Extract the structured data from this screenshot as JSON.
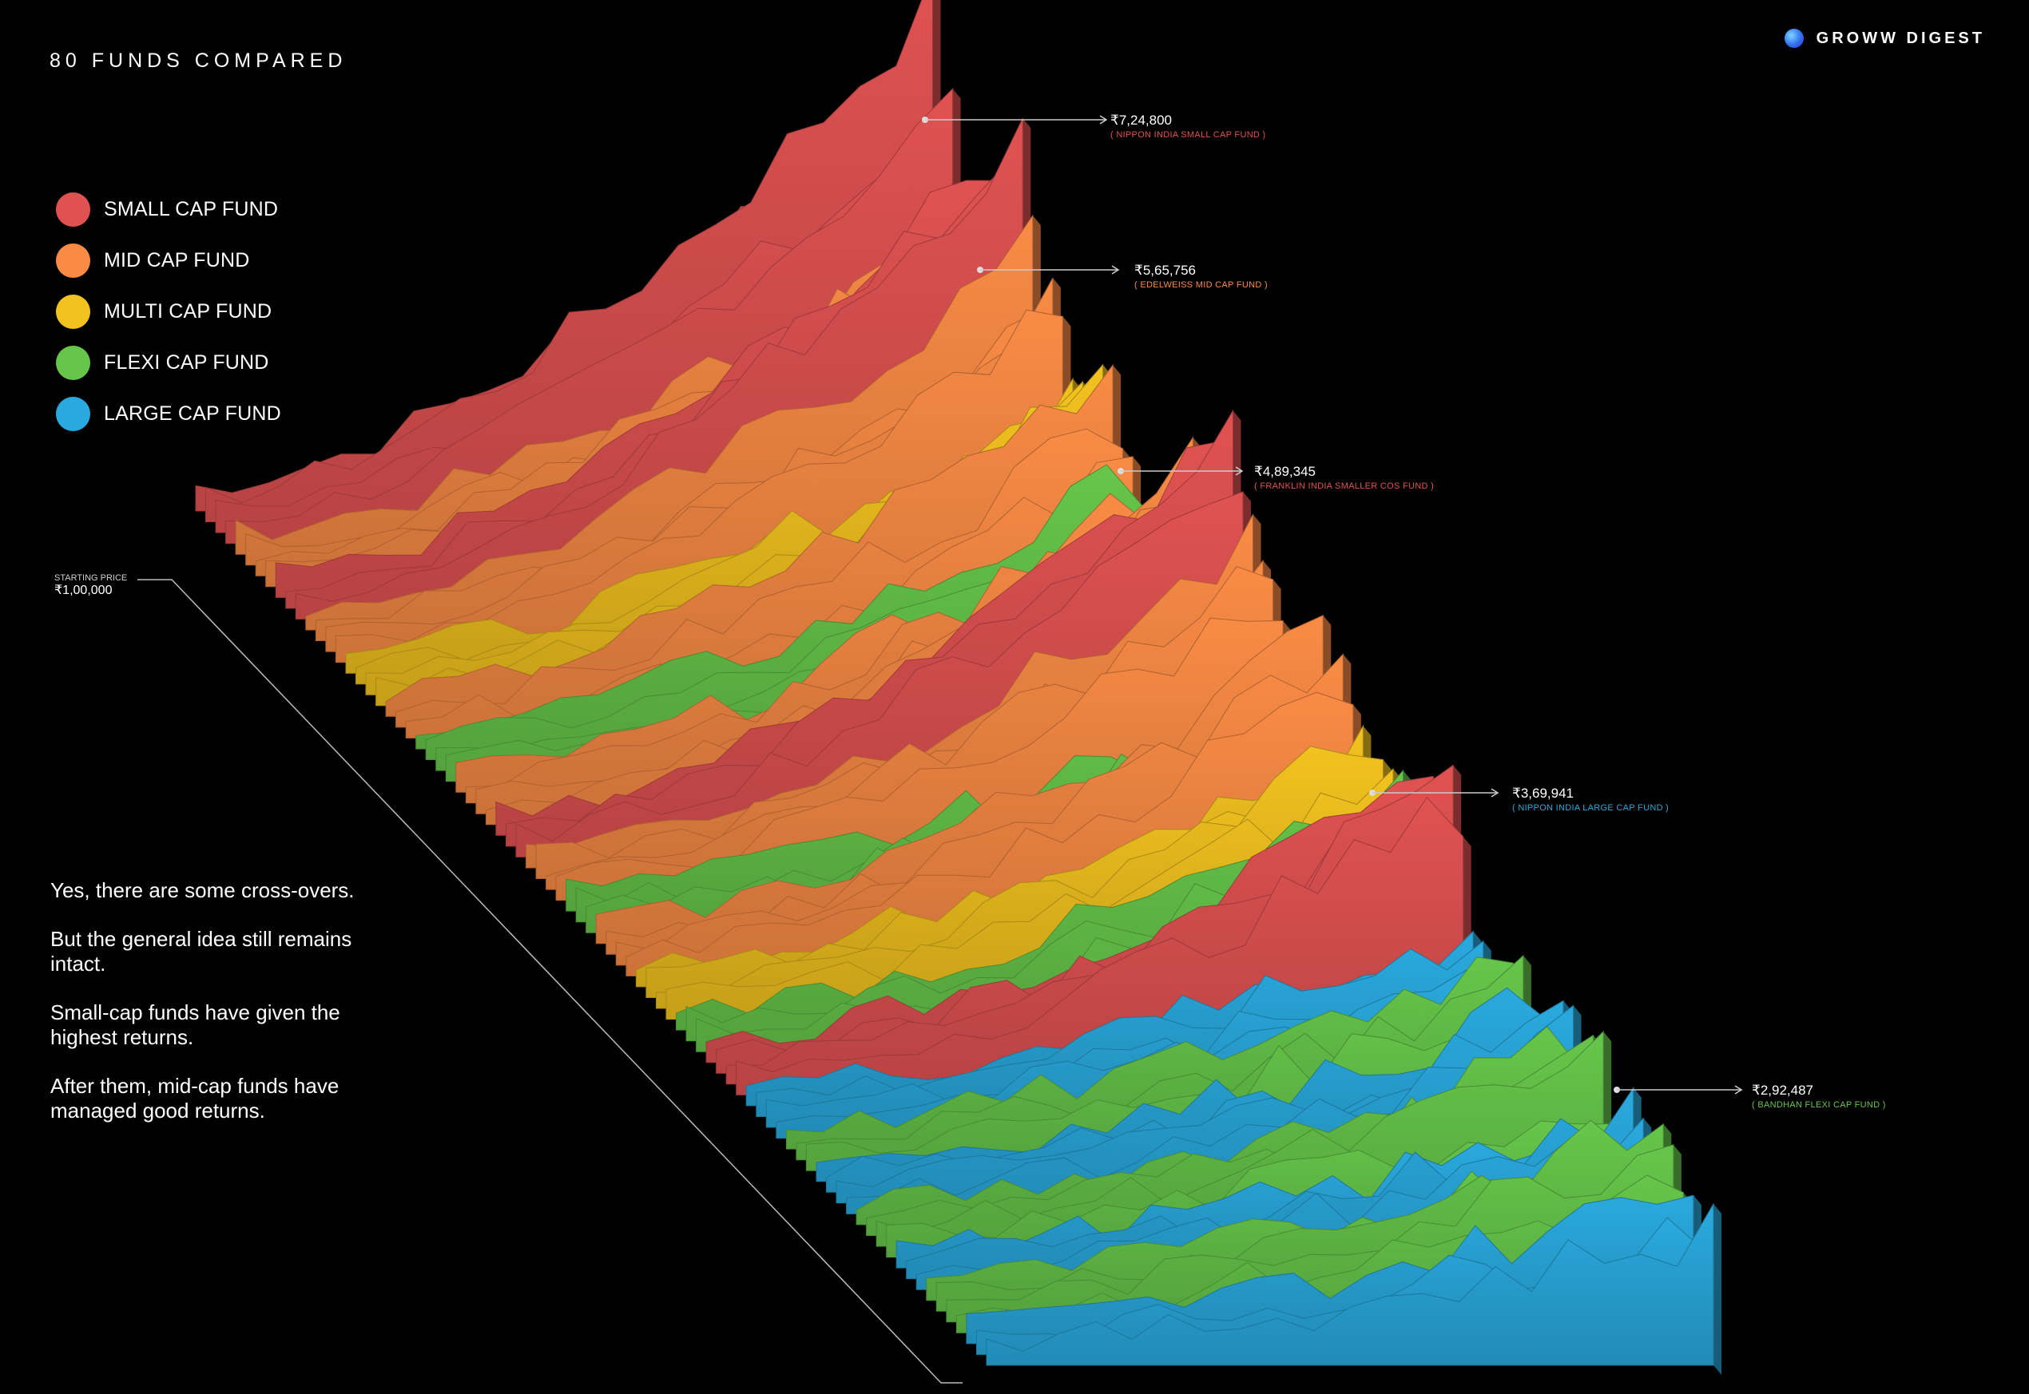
{
  "header": {
    "title": "80 FUNDS COMPARED",
    "brand": "GROWW DIGEST"
  },
  "legend": [
    {
      "label": "SMALL CAP FUND",
      "color": "#e05252"
    },
    {
      "label": "MID CAP FUND",
      "color": "#f98b45"
    },
    {
      "label": "MULTI CAP FUND",
      "color": "#f2c21f"
    },
    {
      "label": "FLEXI CAP FUND",
      "color": "#66c64a"
    },
    {
      "label": "LARGE CAP FUND",
      "color": "#2aa9de"
    }
  ],
  "body_text": [
    "Yes, there are some cross-overs.",
    "But the general idea still remains intact.",
    "Small-cap funds have given the highest returns.",
    "After them, mid-cap funds have managed good returns."
  ],
  "chart_data": {
    "type": "area",
    "subtype": "ridgeline-3d",
    "title": "80 FUNDS COMPARED",
    "fund_count": 80,
    "starting_price": {
      "label": "STARTING PRICE",
      "value": "₹1,00,000"
    },
    "category_order": [
      "small",
      "mid",
      "small",
      "mid",
      "multi",
      "mid",
      "flexi",
      "mid",
      "small",
      "mid",
      "flexi",
      "mid",
      "multi",
      "flexi",
      "small",
      "large",
      "flexi",
      "large",
      "flexi",
      "large",
      "flexi",
      "large"
    ],
    "annotations": [
      {
        "value": "₹7,24,800",
        "fund": "( NIPPON INDIA SMALL CAP FUND )",
        "category": "small"
      },
      {
        "value": "₹5,65,756",
        "fund": "( EDELWEISS MID CAP FUND )",
        "category": "mid"
      },
      {
        "value": "₹4,89,345",
        "fund": "( FRANKLIN INDIA SMALLER COS FUND )",
        "category": "small"
      },
      {
        "value": "₹3,69,941",
        "fund": "( NIPPON INDIA LARGE CAP FUND )",
        "category": "large"
      },
      {
        "value": "₹2,92,487",
        "fund": "( BANDHAN FLEXI CAP FUND )",
        "category": "flexi"
      }
    ],
    "colors": {
      "small": "#e05252",
      "mid": "#f98b45",
      "multi": "#f2c21f",
      "flexi": "#66c64a",
      "large": "#2aa9de"
    }
  }
}
